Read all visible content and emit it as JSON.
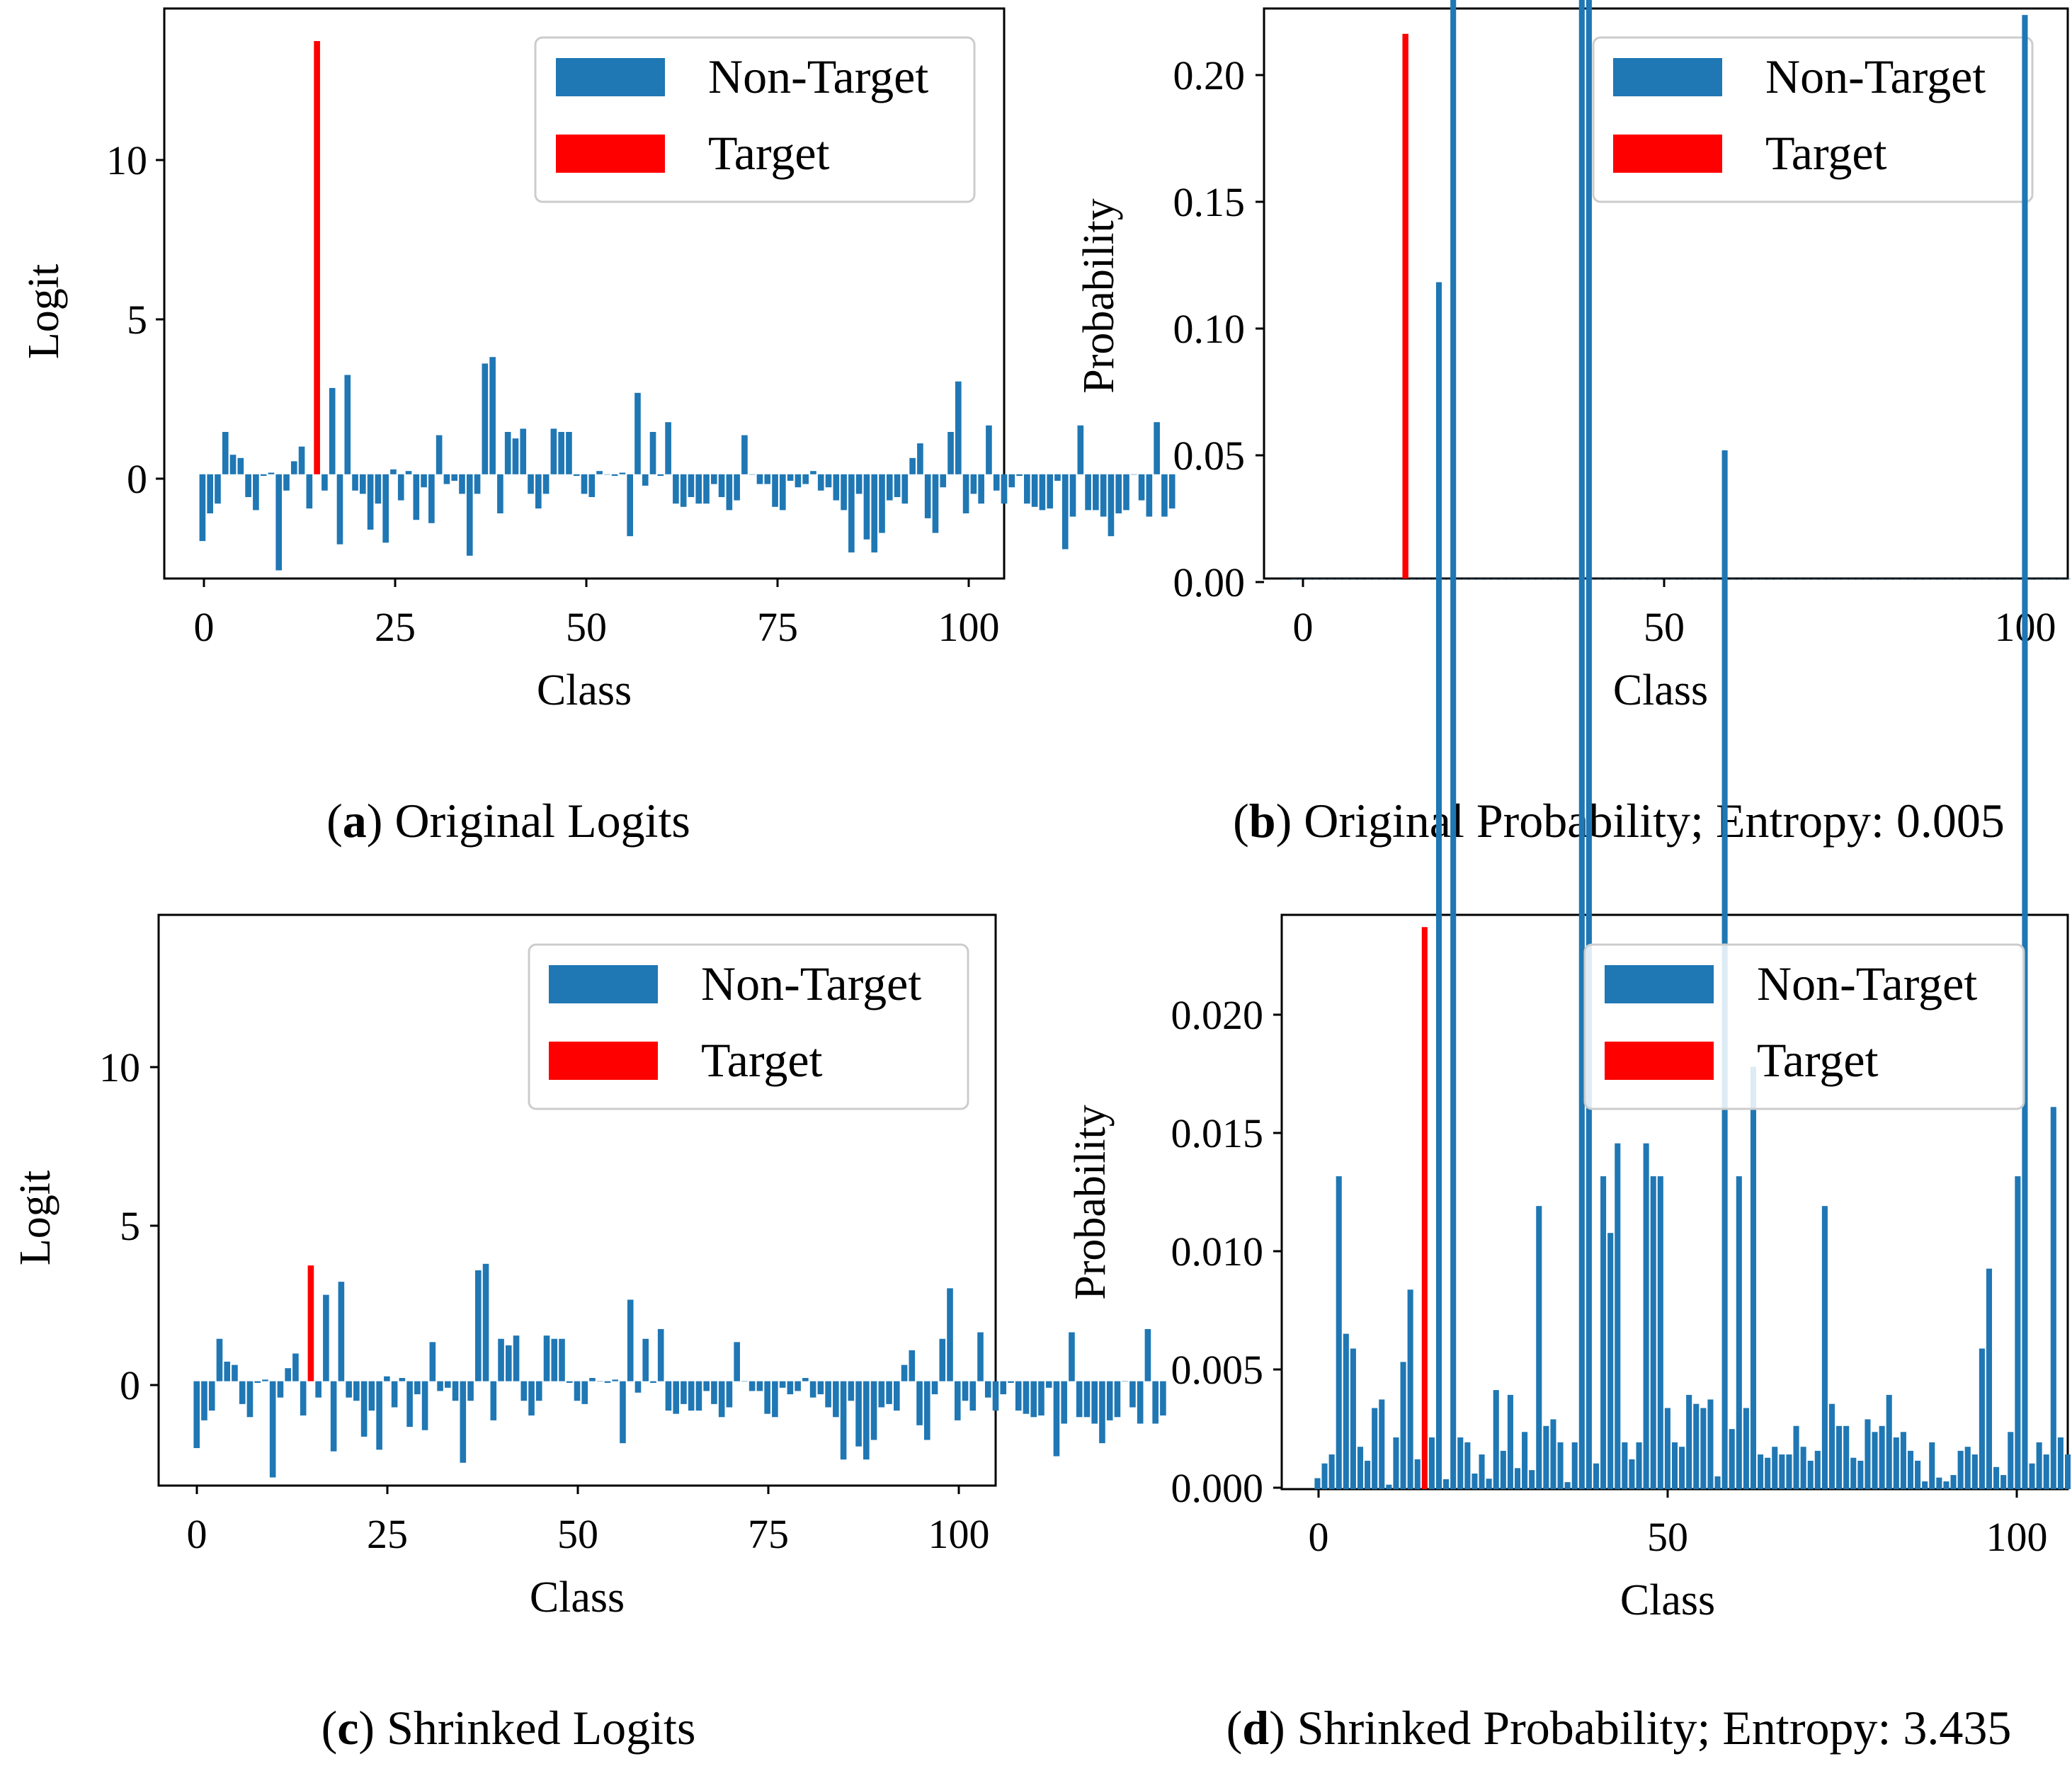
{
  "colors": {
    "non_target": "#1f77b4",
    "target": "#ff0000"
  },
  "logits_original": [
    -2.05,
    -1.2,
    -0.9,
    1.3,
    0.6,
    0.5,
    -0.7,
    -1.1,
    -0.05,
    0.05,
    -2.95,
    -0.5,
    0.4,
    0.85,
    -1.05,
    13.3,
    -0.5,
    2.65,
    -2.15,
    3.05,
    -0.5,
    -0.6,
    -1.7,
    -0.9,
    -2.1,
    0.15,
    -0.8,
    0.1,
    -1.4,
    -0.4,
    -1.5,
    1.2,
    -0.3,
    -0.2,
    -0.6,
    -2.5,
    -0.6,
    3.4,
    3.6,
    -1.2,
    1.3,
    1.1,
    1.4,
    -0.6,
    -1.05,
    -0.6,
    1.4,
    1.3,
    1.3,
    -0.05,
    -0.6,
    -0.7,
    0.1,
    0.0,
    -0.05,
    0.05,
    -1.9,
    2.5,
    -0.35,
    1.3,
    -0.05,
    1.6,
    -0.9,
    -1.0,
    -0.7,
    -0.9,
    -0.9,
    -0.3,
    -0.7,
    -1.1,
    -0.8,
    1.2,
    0.0,
    -0.3,
    -0.3,
    -1.0,
    -1.1,
    -0.2,
    -0.4,
    -0.3,
    0.1,
    -0.5,
    -0.4,
    -0.8,
    -1.1,
    -2.4,
    -0.6,
    -2.0,
    -2.4,
    -1.8,
    -0.8,
    -0.7,
    -0.9,
    0.5,
    0.95,
    -1.35,
    -1.8,
    -0.4,
    1.3,
    2.85,
    -1.2,
    -0.6,
    -0.9,
    1.5,
    -0.5,
    -0.9,
    -0.4,
    -0.05,
    -0.9,
    -1.0,
    -1.1,
    -1.05,
    -0.2,
    -2.3,
    -1.3,
    1.5,
    -1.1,
    -1.1,
    -1.3,
    -1.9,
    -1.2,
    -1.1,
    0.0,
    -0.8,
    -1.3,
    1.6,
    -1.3,
    -1.05
  ],
  "panels": {
    "a": {
      "ylabel": "Logit",
      "xlabel": "Class",
      "yticks": [
        "10",
        "5",
        "0"
      ],
      "xticks": [
        "0",
        "25",
        "50",
        "75",
        "100"
      ],
      "legend": {
        "non_target": "Non-Target",
        "target": "Target"
      },
      "caption_label": "a",
      "caption_text": "Original Logits"
    },
    "b": {
      "ylabel": "Probability",
      "xlabel": "Class",
      "yticks": [
        "0.20",
        "0.15",
        "0.10",
        "0.05",
        "0.00"
      ],
      "xticks": [
        "0",
        "50",
        "100"
      ],
      "legend": {
        "non_target": "Non-Target",
        "target": "Target"
      },
      "caption_label": "b",
      "caption_text": "Original Probability; Entropy: 0.005"
    },
    "c": {
      "ylabel": "Logit",
      "xlabel": "Class",
      "yticks": [
        "10",
        "5",
        "0"
      ],
      "xticks": [
        "0",
        "25",
        "50",
        "75",
        "100"
      ],
      "legend": {
        "non_target": "Non-Target",
        "target": "Target"
      },
      "caption_label": "c",
      "caption_text": "Shrinked Logits"
    },
    "d": {
      "ylabel": "Probability",
      "xlabel": "Class",
      "yticks": [
        "0.020",
        "0.015",
        "0.010",
        "0.005",
        "0.000"
      ],
      "xticks": [
        "0",
        "50",
        "100"
      ],
      "legend": {
        "non_target": "Non-Target",
        "target": "Target"
      },
      "caption_label": "d",
      "caption_text": "Shrinked Probability; Entropy: 3.435"
    }
  },
  "chart_data": [
    {
      "id": "a",
      "type": "bar",
      "title": "(a) Original Logits",
      "xlabel": "Class",
      "ylabel": "Logit",
      "xlim": [
        -5,
        105
      ],
      "ylim": [
        -3.2,
        14.3
      ],
      "series": [
        {
          "name": "Non-Target",
          "color": "#1f77b4",
          "source": "logits_original"
        },
        {
          "name": "Target",
          "color": "#ff0000",
          "class": 15,
          "value": 13.3
        }
      ],
      "legend": "top-right"
    },
    {
      "id": "b",
      "type": "bar",
      "title": "(b) Original Probability; Entropy: 0.005",
      "xlabel": "Class",
      "ylabel": "Probability",
      "xlim": [
        -4,
        104
      ],
      "ylim": [
        0,
        0.225
      ],
      "series": [
        {
          "name": "Non-Target",
          "color": "#1f77b4",
          "transform": "softmax(logits_original)"
        },
        {
          "name": "Target",
          "color": "#ff0000",
          "class": 15,
          "value": 0.215
        }
      ],
      "legend": "top-right"
    },
    {
      "id": "c",
      "type": "bar",
      "title": "(c) Shrinked Logits",
      "xlabel": "Class",
      "ylabel": "Logit",
      "xlim": [
        -5,
        105
      ],
      "ylim": [
        -3.2,
        14.3
      ],
      "series": [
        {
          "name": "Non-Target",
          "color": "#1f77b4",
          "source": "logits_original"
        },
        {
          "name": "Target",
          "color": "#ff0000",
          "class": 15,
          "value": 3.55
        }
      ],
      "legend": "top-right"
    },
    {
      "id": "d",
      "type": "bar",
      "title": "(d) Shrinked Probability; Entropy: 3.435",
      "xlabel": "Class",
      "ylabel": "Probability",
      "xlim": [
        -5,
        105
      ],
      "ylim": [
        0,
        0.0235
      ],
      "series": [
        {
          "name": "Non-Target",
          "color": "#1f77b4",
          "transform": "softmax(shrinked logits)"
        },
        {
          "name": "Target",
          "color": "#ff0000",
          "class": 15,
          "value": 0.023
        }
      ],
      "legend": "top-right"
    }
  ]
}
